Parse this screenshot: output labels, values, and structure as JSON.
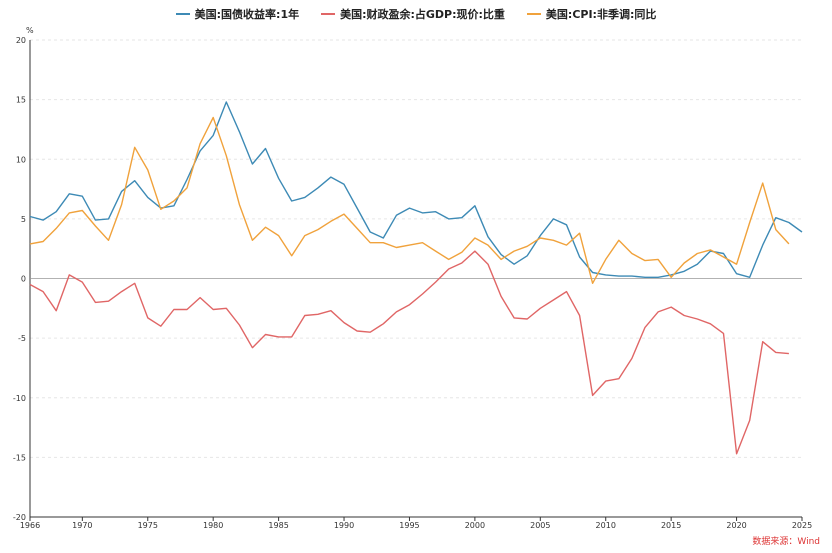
{
  "chart_data": {
    "type": "line",
    "unit": "%",
    "ylim": [
      -20,
      20
    ],
    "yticks": [
      -20,
      -15,
      -10,
      -5,
      0,
      5,
      10,
      15,
      20
    ],
    "xlim": [
      1966,
      2025
    ],
    "xticks": [
      1966,
      1970,
      1975,
      1980,
      1985,
      1990,
      1995,
      2000,
      2005,
      2010,
      2015,
      2020,
      2025
    ],
    "grid": true,
    "legend": "top-center",
    "source": "数据来源：Wind",
    "series": [
      {
        "name": "美国:国债收益率:1年",
        "color": "#3d8ab5",
        "x": [
          1966,
          1967,
          1968,
          1969,
          1970,
          1971,
          1972,
          1973,
          1974,
          1975,
          1976,
          1977,
          1978,
          1979,
          1980,
          1981,
          1982,
          1983,
          1984,
          1985,
          1986,
          1987,
          1988,
          1989,
          1990,
          1991,
          1992,
          1993,
          1994,
          1995,
          1996,
          1997,
          1998,
          1999,
          2000,
          2001,
          2002,
          2003,
          2004,
          2005,
          2006,
          2007,
          2008,
          2009,
          2010,
          2011,
          2012,
          2013,
          2014,
          2015,
          2016,
          2017,
          2018,
          2019,
          2020,
          2021,
          2022,
          2023,
          2024,
          2025
        ],
        "y": [
          5.2,
          4.9,
          5.6,
          7.1,
          6.9,
          4.9,
          5.0,
          7.3,
          8.2,
          6.8,
          5.9,
          6.1,
          8.3,
          10.7,
          12.0,
          14.8,
          12.3,
          9.6,
          10.9,
          8.4,
          6.5,
          6.8,
          7.6,
          8.5,
          7.9,
          5.9,
          3.9,
          3.4,
          5.3,
          5.9,
          5.5,
          5.6,
          5.0,
          5.1,
          6.1,
          3.5,
          2.0,
          1.2,
          1.9,
          3.6,
          5.0,
          4.5,
          1.8,
          0.5,
          0.3,
          0.2,
          0.2,
          0.1,
          0.1,
          0.3,
          0.6,
          1.2,
          2.3,
          2.1,
          0.4,
          0.1,
          2.8,
          5.1,
          4.7,
          3.9
        ]
      },
      {
        "name": "美国:财政盈余:占GDP:现价:比重",
        "color": "#e06666",
        "x": [
          1966,
          1967,
          1968,
          1969,
          1970,
          1971,
          1972,
          1973,
          1974,
          1975,
          1976,
          1977,
          1978,
          1979,
          1980,
          1981,
          1982,
          1983,
          1984,
          1985,
          1986,
          1987,
          1988,
          1989,
          1990,
          1991,
          1992,
          1993,
          1994,
          1995,
          1996,
          1997,
          1998,
          1999,
          2000,
          2001,
          2002,
          2003,
          2004,
          2005,
          2006,
          2007,
          2008,
          2009,
          2010,
          2011,
          2012,
          2013,
          2014,
          2015,
          2016,
          2017,
          2018,
          2019,
          2020,
          2021,
          2022,
          2023,
          2024
        ],
        "y": [
          -0.5,
          -1.1,
          -2.7,
          0.3,
          -0.3,
          -2.0,
          -1.9,
          -1.1,
          -0.4,
          -3.3,
          -4.0,
          -2.6,
          -2.6,
          -1.6,
          -2.6,
          -2.5,
          -3.9,
          -5.8,
          -4.7,
          -4.9,
          -4.9,
          -3.1,
          -3.0,
          -2.7,
          -3.7,
          -4.4,
          -4.5,
          -3.8,
          -2.8,
          -2.2,
          -1.3,
          -0.3,
          0.8,
          1.3,
          2.3,
          1.2,
          -1.5,
          -3.3,
          -3.4,
          -2.5,
          -1.8,
          -1.1,
          -3.1,
          -9.8,
          -8.6,
          -8.4,
          -6.7,
          -4.1,
          -2.8,
          -2.4,
          -3.1,
          -3.4,
          -3.8,
          -4.6,
          -14.7,
          -11.9,
          -5.3,
          -6.2,
          -6.3
        ]
      },
      {
        "name": "美国:CPI:非季调:同比",
        "color": "#f0a23c",
        "x": [
          1966,
          1967,
          1968,
          1969,
          1970,
          1971,
          1972,
          1973,
          1974,
          1975,
          1976,
          1977,
          1978,
          1979,
          1980,
          1981,
          1982,
          1983,
          1984,
          1985,
          1986,
          1987,
          1988,
          1989,
          1990,
          1991,
          1992,
          1993,
          1994,
          1995,
          1996,
          1997,
          1998,
          1999,
          2000,
          2001,
          2002,
          2003,
          2004,
          2005,
          2006,
          2007,
          2008,
          2009,
          2010,
          2011,
          2012,
          2013,
          2014,
          2015,
          2016,
          2017,
          2018,
          2019,
          2020,
          2021,
          2022,
          2023,
          2024
        ],
        "y": [
          2.9,
          3.1,
          4.2,
          5.5,
          5.7,
          4.4,
          3.2,
          6.2,
          11.0,
          9.1,
          5.8,
          6.5,
          7.6,
          11.3,
          13.5,
          10.3,
          6.2,
          3.2,
          4.3,
          3.6,
          1.9,
          3.6,
          4.1,
          4.8,
          5.4,
          4.2,
          3.0,
          3.0,
          2.6,
          2.8,
          3.0,
          2.3,
          1.6,
          2.2,
          3.4,
          2.8,
          1.6,
          2.3,
          2.7,
          3.4,
          3.2,
          2.8,
          3.8,
          -0.4,
          1.6,
          3.2,
          2.1,
          1.5,
          1.6,
          0.1,
          1.3,
          2.1,
          2.4,
          1.8,
          1.2,
          4.7,
          8.0,
          4.1,
          2.9
        ]
      }
    ]
  }
}
